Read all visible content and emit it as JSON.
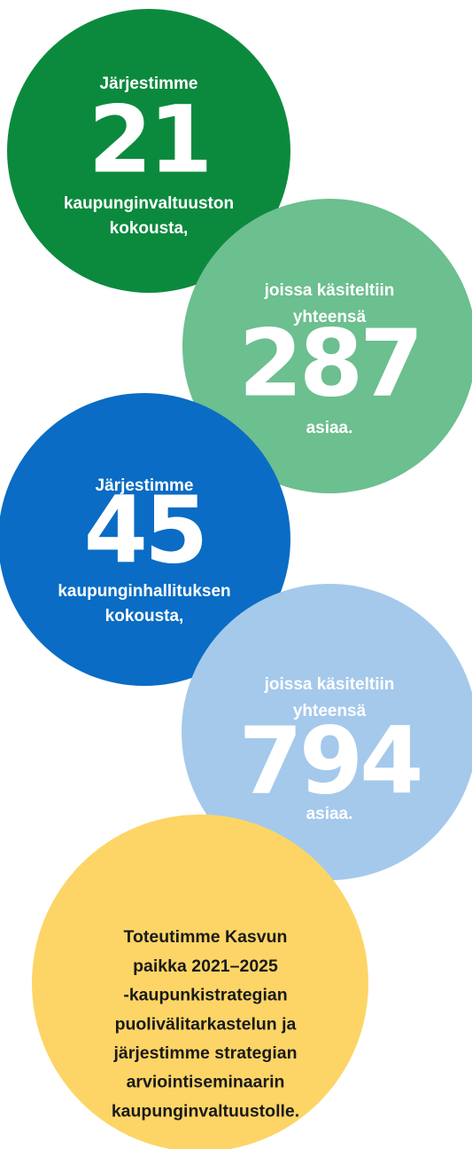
{
  "circles": [
    {
      "top": [
        "Järjestimme"
      ],
      "number": 21,
      "bottom": [
        "kaupunginvaltuuston",
        "kokousta,"
      ]
    },
    {
      "top": [
        "joissa käsiteltiin",
        "yhteensä"
      ],
      "number": 287,
      "bottom": [
        "asiaa."
      ]
    },
    {
      "top": [
        "Järjestimme"
      ],
      "number": 45,
      "bottom": [
        "kaupunginhallituksen",
        "kokousta,"
      ]
    },
    {
      "top": [
        "joissa käsiteltiin",
        "yhteensä"
      ],
      "number": 794,
      "bottom": [
        "asiaa."
      ]
    }
  ],
  "statement": {
    "lines": [
      "Toteutimme Kasvun",
      "paikka 2021–2025",
      "-kaupunkistrategian",
      "puolivälitarkastelun ja",
      "järjestimme strategian",
      "arviointiseminaarin",
      "kaupunginvaltuustolle."
    ]
  }
}
